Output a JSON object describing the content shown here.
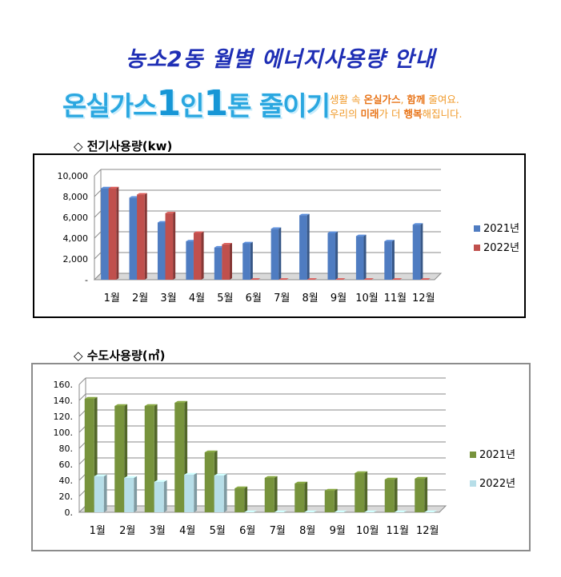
{
  "page": {
    "title": "농소2동 월별 에너지사용량 안내",
    "campaign_prefix": "온실가스",
    "campaign_one_a": "1",
    "campaign_mid": "인",
    "campaign_one_b": "1",
    "campaign_suffix": "톤 줄이기",
    "slogan_line1_a": "생활 속 ",
    "slogan_line1_b": "온실가스",
    "slogan_line1_c": ", ",
    "slogan_line1_d": "함께",
    "slogan_line1_e": " 줄여요.",
    "slogan_line2_a": "우리의 ",
    "slogan_line2_b": "미래",
    "slogan_line2_c": "가 더 ",
    "slogan_line2_d": "행복",
    "slogan_line2_e": "해집니다."
  },
  "chart_data": [
    {
      "type": "bar",
      "title": "◇ 전기사용량(kw)",
      "categories": [
        "1월",
        "2월",
        "3월",
        "4월",
        "5월",
        "6월",
        "7월",
        "8월",
        "9월",
        "10월",
        "11월",
        "12월"
      ],
      "series": [
        {
          "name": "2021년",
          "color": "#4f7cc1",
          "values": [
            8800,
            7900,
            5500,
            3700,
            3100,
            3500,
            4900,
            6200,
            4500,
            4200,
            3700,
            5300
          ]
        },
        {
          "name": "2022년",
          "color": "#c0504d",
          "values": [
            8800,
            8200,
            6400,
            4500,
            3400,
            0,
            0,
            0,
            0,
            0,
            0,
            0
          ]
        }
      ],
      "yticks": [
        "-",
        "2,000",
        "4,000",
        "6,000",
        "8,000",
        "10,000"
      ],
      "ylim": [
        0,
        10000
      ],
      "grid": true,
      "legend": "right"
    },
    {
      "type": "bar",
      "title": "◇ 수도사용량(㎥)",
      "categories": [
        "1월",
        "2월",
        "3월",
        "4월",
        "5월",
        "6월",
        "7월",
        "8월",
        "9월",
        "10월",
        "11월",
        "12월"
      ],
      "series": [
        {
          "name": "2021년",
          "color": "#77933c",
          "values": [
            142,
            133,
            133,
            137,
            75,
            30,
            43,
            36,
            27,
            49,
            41,
            42
          ]
        },
        {
          "name": "2022년",
          "color": "#b7dee8",
          "values": [
            45,
            43,
            38,
            47,
            46,
            0,
            0,
            0,
            0,
            0,
            0,
            0
          ]
        }
      ],
      "yticks": [
        "0.",
        "20.",
        "40.",
        "60.",
        "80.",
        "100.",
        "120.",
        "140.",
        "160."
      ],
      "ylim": [
        0,
        160
      ],
      "grid": true,
      "legend": "right"
    }
  ]
}
